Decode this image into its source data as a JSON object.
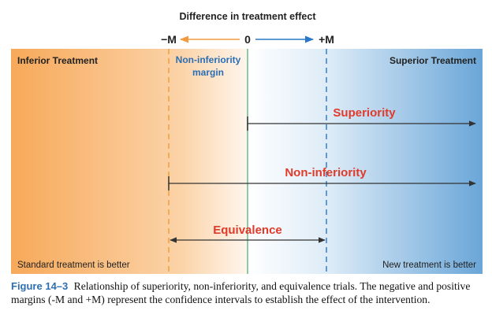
{
  "header": {
    "title": "Difference in treatment effect",
    "minus_margin": "−M",
    "zero": "0",
    "plus_margin": "+M"
  },
  "regions": {
    "inferior": "Inferior Treatment",
    "superior": "Superior Treatment",
    "margin_label_line1": "Non-inferiority",
    "margin_label_line2": "margin",
    "standard_better": "Standard treatment is better",
    "new_better": "New treatment is better"
  },
  "trials": {
    "superiority": "Superiority",
    "non_inferiority": "Non-inferiority",
    "equivalence": "Equivalence"
  },
  "caption": {
    "figure_number": "Figure 14–3",
    "text": "Relationship of superiority, non-inferiority, and equivalence trials. The negative and positive margins (-M and +M) represent the confidence intervals to establish the effect of the intervention."
  },
  "colors": {
    "orange": "#f7a95a",
    "blue": "#6aa6d8",
    "red_label": "#e03a2a",
    "blue_label": "#2a6fb5",
    "green_line": "#6fbf8a",
    "arrow": "#333333"
  }
}
